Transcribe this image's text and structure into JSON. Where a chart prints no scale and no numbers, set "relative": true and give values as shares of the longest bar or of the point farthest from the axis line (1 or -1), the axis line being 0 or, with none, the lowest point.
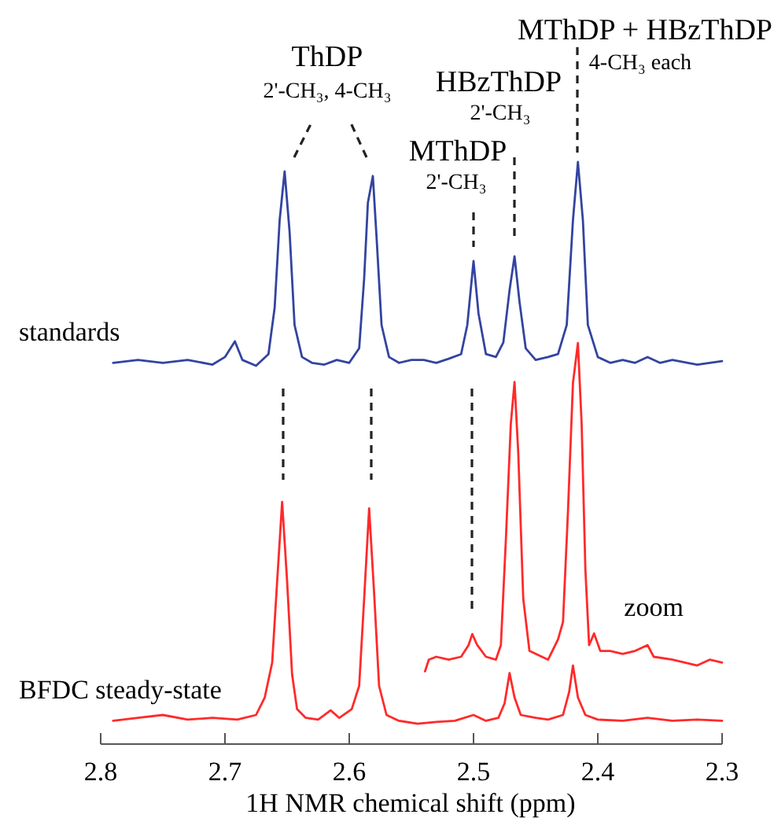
{
  "chart_data": {
    "type": "line",
    "relative": true,
    "xlabel": "1H NMR chemical shift (ppm)",
    "xlim": [
      2.8,
      2.3
    ],
    "xticks": [
      2.8,
      2.7,
      2.6,
      2.5,
      2.4,
      2.3
    ],
    "series": [
      {
        "name": "standards",
        "color": "#3344a0",
        "x": [
          2.79,
          2.77,
          2.75,
          2.73,
          2.71,
          2.7,
          2.692,
          2.686,
          2.675,
          2.665,
          2.66,
          2.656,
          2.652,
          2.648,
          2.644,
          2.638,
          2.63,
          2.62,
          2.61,
          2.6,
          2.592,
          2.588,
          2.585,
          2.581,
          2.578,
          2.574,
          2.568,
          2.56,
          2.55,
          2.54,
          2.53,
          2.52,
          2.51,
          2.505,
          2.5,
          2.496,
          2.49,
          2.482,
          2.476,
          2.471,
          2.467,
          2.463,
          2.458,
          2.45,
          2.44,
          2.432,
          2.425,
          2.42,
          2.416,
          2.412,
          2.408,
          2.4,
          2.39,
          2.38,
          2.37,
          2.36,
          2.35,
          2.34,
          2.32,
          2.3
        ],
        "values": [
          0.655,
          0.66,
          0.655,
          0.66,
          0.652,
          0.665,
          0.692,
          0.66,
          0.65,
          0.67,
          0.75,
          0.9,
          0.984,
          0.88,
          0.72,
          0.665,
          0.655,
          0.652,
          0.66,
          0.655,
          0.68,
          0.8,
          0.93,
          0.976,
          0.87,
          0.72,
          0.665,
          0.655,
          0.66,
          0.66,
          0.655,
          0.662,
          0.67,
          0.72,
          0.83,
          0.74,
          0.67,
          0.665,
          0.69,
          0.78,
          0.838,
          0.76,
          0.68,
          0.66,
          0.665,
          0.67,
          0.72,
          0.9,
          1,
          0.9,
          0.72,
          0.665,
          0.655,
          0.66,
          0.655,
          0.665,
          0.655,
          0.66,
          0.652,
          0.658
        ]
      },
      {
        "name": "BFDC steady-state",
        "color": "#ff2a2a",
        "x": [
          2.79,
          2.77,
          2.75,
          2.73,
          2.71,
          2.69,
          2.675,
          2.668,
          2.662,
          2.658,
          2.654,
          2.65,
          2.646,
          2.642,
          2.635,
          2.625,
          2.615,
          2.608,
          2.598,
          2.592,
          2.588,
          2.584,
          2.58,
          2.576,
          2.57,
          2.56,
          2.545,
          2.53,
          2.515,
          2.5,
          2.49,
          2.48,
          2.475,
          2.471,
          2.467,
          2.462,
          2.45,
          2.44,
          2.428,
          2.423,
          2.42,
          2.416,
          2.41,
          2.4,
          2.38,
          2.36,
          2.34,
          2.32,
          2.3
        ],
        "values": [
          0.04,
          0.045,
          0.05,
          0.042,
          0.045,
          0.042,
          0.05,
          0.08,
          0.14,
          0.28,
          0.416,
          0.28,
          0.12,
          0.06,
          0.045,
          0.042,
          0.058,
          0.045,
          0.06,
          0.1,
          0.25,
          0.405,
          0.26,
          0.1,
          0.05,
          0.04,
          0.035,
          0.038,
          0.04,
          0.05,
          0.04,
          0.045,
          0.07,
          0.122,
          0.08,
          0.05,
          0.045,
          0.042,
          0.05,
          0.09,
          0.135,
          0.08,
          0.05,
          0.042,
          0.04,
          0.045,
          0.04,
          0.042,
          0.04
        ]
      },
      {
        "name": "zoom",
        "color": "#ff2a2a",
        "x": [
          2.539,
          2.536,
          2.53,
          2.52,
          2.51,
          2.504,
          2.501,
          2.497,
          2.49,
          2.482,
          2.478,
          2.474,
          2.47,
          2.467,
          2.464,
          2.46,
          2.455,
          2.445,
          2.44,
          2.432,
          2.428,
          2.424,
          2.42,
          2.416,
          2.413,
          2.41,
          2.407,
          2.403,
          2.398,
          2.39,
          2.38,
          2.37,
          2.36,
          2.355,
          2.34,
          2.33,
          2.32,
          2.31,
          2.3
        ],
        "values": [
          0.125,
          0.145,
          0.15,
          0.145,
          0.15,
          0.17,
          0.189,
          0.17,
          0.15,
          0.145,
          0.17,
          0.35,
          0.55,
          0.622,
          0.5,
          0.25,
          0.16,
          0.15,
          0.145,
          0.18,
          0.21,
          0.4,
          0.62,
          0.689,
          0.55,
          0.3,
          0.17,
          0.19,
          0.16,
          0.16,
          0.155,
          0.16,
          0.17,
          0.15,
          0.145,
          0.14,
          0.135,
          0.145,
          0.14
        ]
      }
    ],
    "annotations": [
      "ThDP",
      "2'-CH₃, 4-CH₃",
      "HBzThDP",
      "2'-CH₃",
      "MThDP",
      "2'-CH₃",
      "MThDP + HBzThDP",
      "4-CH₃ each"
    ]
  }
}
